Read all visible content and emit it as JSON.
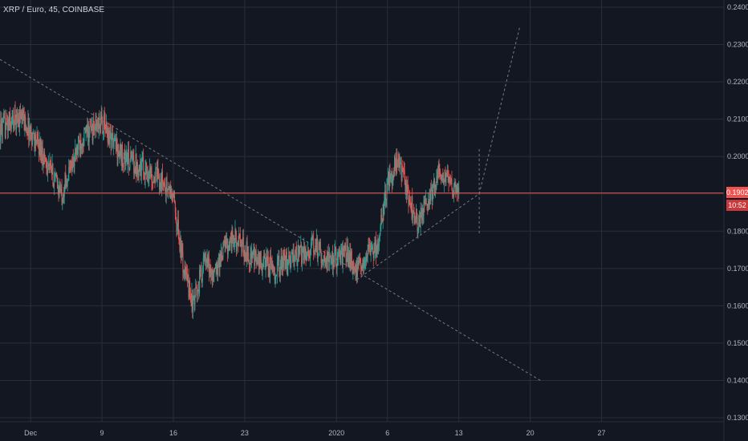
{
  "header": {
    "symbol_title": "XRP / Euro, 45, COINBASE"
  },
  "price_line": {
    "value_label": "0.1902",
    "countdown": "10:52"
  },
  "colors": {
    "background": "#131722",
    "grid": "#2a2e39",
    "up": "#26a69a",
    "down": "#ef5350",
    "price_line": "#ef5350",
    "drawing": "#787b86"
  },
  "chart_data": {
    "type": "candlestick",
    "y_axis": {
      "position": "right",
      "range": [
        0.13,
        0.24
      ],
      "tick_values": [
        0.13,
        0.14,
        0.15,
        0.16,
        0.17,
        0.18,
        0.19,
        0.2,
        0.21,
        0.22,
        0.23,
        0.24
      ],
      "tick_labels": [
        "0.1300",
        "0.1400",
        "0.1500",
        "0.1600",
        "0.1700",
        "0.1800",
        "0.1900",
        "0.2000",
        "0.2100",
        "0.2200",
        "0.2300",
        "0.2400"
      ]
    },
    "x_axis": {
      "tick_labels": [
        "Dec",
        "9",
        "16",
        "23",
        "2020",
        "6",
        "13",
        "20",
        "27"
      ],
      "tick_dates": [
        "2019-12-02",
        "2019-12-09",
        "2019-12-16",
        "2019-12-23",
        "2020-01-01",
        "2020-01-06",
        "2020-01-13",
        "2020-01-20",
        "2020-01-27"
      ],
      "range": [
        "2019-11-29",
        "2020-02-08"
      ]
    },
    "grid": true,
    "current_price": 0.1902,
    "price_path": [
      [
        "2019-11-29",
        0.207
      ],
      [
        "2019-12-01",
        0.211
      ],
      [
        "2019-12-03",
        0.202
      ],
      [
        "2019-12-05",
        0.19
      ],
      [
        "2019-12-07",
        0.205
      ],
      [
        "2019-12-09",
        0.209
      ],
      [
        "2019-12-11",
        0.2
      ],
      [
        "2019-12-13",
        0.197
      ],
      [
        "2019-12-15",
        0.193
      ],
      [
        "2019-12-16",
        0.189
      ],
      [
        "2019-12-17",
        0.17
      ],
      [
        "2019-12-18",
        0.16
      ],
      [
        "2019-12-19",
        0.172
      ],
      [
        "2019-12-20",
        0.168
      ],
      [
        "2019-12-21",
        0.176
      ],
      [
        "2019-12-22",
        0.178
      ],
      [
        "2019-12-24",
        0.172
      ],
      [
        "2019-12-26",
        0.17
      ],
      [
        "2019-12-28",
        0.173
      ],
      [
        "2019-12-30",
        0.176
      ],
      [
        "2019-12-31",
        0.172
      ],
      [
        "2020-01-02",
        0.174
      ],
      [
        "2020-01-03",
        0.169
      ],
      [
        "2020-01-04",
        0.174
      ],
      [
        "2020-01-05",
        0.176
      ],
      [
        "2020-01-06",
        0.193
      ],
      [
        "2020-01-07",
        0.199
      ],
      [
        "2020-01-08",
        0.19
      ],
      [
        "2020-01-09",
        0.182
      ],
      [
        "2020-01-10",
        0.188
      ],
      [
        "2020-01-11",
        0.195
      ],
      [
        "2020-01-12",
        0.193
      ],
      [
        "2020-01-13",
        0.1902
      ]
    ],
    "drawings": [
      {
        "kind": "trend-line",
        "points": [
          [
            "2019-11-29",
            0.226
          ],
          [
            "2020-01-21",
            0.14
          ]
        ]
      },
      {
        "kind": "trend-line",
        "points": [
          [
            "2020-01-03",
            0.167
          ],
          [
            "2020-01-15",
            0.19
          ]
        ]
      },
      {
        "kind": "projection",
        "points": [
          [
            "2020-01-15",
            0.19
          ],
          [
            "2020-01-19",
            0.235
          ]
        ]
      },
      {
        "kind": "range",
        "points": [
          [
            "2020-01-15",
            0.202
          ],
          [
            "2020-01-15",
            0.179
          ]
        ]
      }
    ]
  }
}
